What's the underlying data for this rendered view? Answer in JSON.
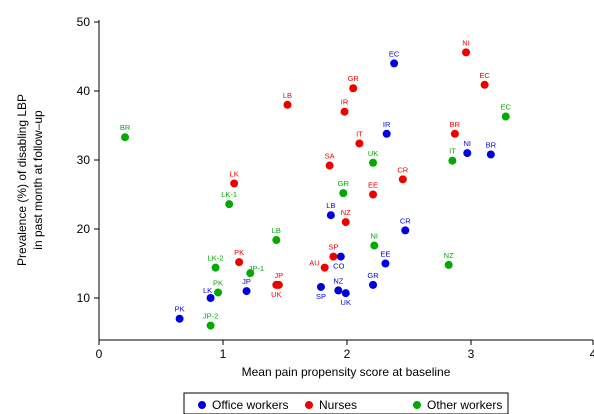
{
  "chart_data": {
    "type": "scatter",
    "title": "",
    "xlabel": "Mean pain propensity score at baseline",
    "ylabel_lines": [
      "Prevalence (%) of disabling LBP",
      "in past month at follow–up"
    ],
    "xlim": [
      0,
      4
    ],
    "ylim": [
      5,
      50
    ],
    "xticks": [
      0,
      1,
      2,
      3,
      4
    ],
    "yticks": [
      10,
      20,
      30,
      40,
      50
    ],
    "grid": false,
    "legend_position": "bottom",
    "series": [
      {
        "name": "Office workers",
        "color": "#0000dd",
        "points": [
          {
            "label": "EC",
            "x": 2.38,
            "y": 44.0
          },
          {
            "label": "IR",
            "x": 2.32,
            "y": 33.8
          },
          {
            "label": "NI",
            "x": 2.97,
            "y": 31.0
          },
          {
            "label": "BR",
            "x": 3.16,
            "y": 30.8
          },
          {
            "label": "LB",
            "x": 1.87,
            "y": 22.0
          },
          {
            "label": "CR",
            "x": 2.47,
            "y": 19.8
          },
          {
            "label": "CO",
            "x": 1.95,
            "y": 16.0
          },
          {
            "label": "EE",
            "x": 2.31,
            "y": 15.0
          },
          {
            "label": "GR",
            "x": 2.21,
            "y": 11.9
          },
          {
            "label": "SP",
            "x": 1.79,
            "y": 11.6
          },
          {
            "label": "NZ",
            "x": 1.93,
            "y": 11.1
          },
          {
            "label": "UK",
            "x": 1.99,
            "y": 10.7
          },
          {
            "label": "JP",
            "x": 1.19,
            "y": 11.0
          },
          {
            "label": "LK",
            "x": 0.9,
            "y": 10.0
          },
          {
            "label": "PK",
            "x": 0.65,
            "y": 7.0
          }
        ]
      },
      {
        "name": "Nurses",
        "color": "#ee0000",
        "points": [
          {
            "label": "NI",
            "x": 2.96,
            "y": 45.6
          },
          {
            "label": "EC",
            "x": 3.11,
            "y": 40.9
          },
          {
            "label": "GR",
            "x": 2.05,
            "y": 40.4
          },
          {
            "label": "LB",
            "x": 1.52,
            "y": 38.0
          },
          {
            "label": "IR",
            "x": 1.98,
            "y": 37.0
          },
          {
            "label": "BR",
            "x": 2.87,
            "y": 33.8
          },
          {
            "label": "IT",
            "x": 2.1,
            "y": 32.4
          },
          {
            "label": "SA",
            "x": 1.86,
            "y": 29.2
          },
          {
            "label": "CR",
            "x": 2.45,
            "y": 27.2
          },
          {
            "label": "LK",
            "x": 1.09,
            "y": 26.6
          },
          {
            "label": "EE",
            "x": 2.21,
            "y": 25.0
          },
          {
            "label": "NZ",
            "x": 1.99,
            "y": 21.0
          },
          {
            "label": "SP",
            "x": 1.89,
            "y": 16.0
          },
          {
            "label": "PK",
            "x": 1.13,
            "y": 15.2
          },
          {
            "label": "AU",
            "x": 1.82,
            "y": 14.4
          },
          {
            "label": "JP",
            "x": 1.45,
            "y": 11.9
          },
          {
            "label": "UK",
            "x": 1.43,
            "y": 11.9
          }
        ]
      },
      {
        "name": "Other workers",
        "color": "#00aa00",
        "points": [
          {
            "label": "EC",
            "x": 3.28,
            "y": 36.3
          },
          {
            "label": "BR",
            "x": 0.21,
            "y": 33.3
          },
          {
            "label": "IT",
            "x": 2.85,
            "y": 29.9
          },
          {
            "label": "UK",
            "x": 2.21,
            "y": 29.6
          },
          {
            "label": "GR",
            "x": 1.97,
            "y": 25.2
          },
          {
            "label": "LK-1",
            "x": 1.05,
            "y": 23.6
          },
          {
            "label": "LB",
            "x": 1.43,
            "y": 18.4
          },
          {
            "label": "NI",
            "x": 2.22,
            "y": 17.6
          },
          {
            "label": "NZ",
            "x": 2.82,
            "y": 14.8
          },
          {
            "label": "LK-2",
            "x": 0.94,
            "y": 14.4
          },
          {
            "label": "JP-1",
            "x": 1.22,
            "y": 13.6
          },
          {
            "label": "PK",
            "x": 0.96,
            "y": 10.8
          },
          {
            "label": "JP-2",
            "x": 0.9,
            "y": 6.0
          }
        ]
      }
    ]
  }
}
